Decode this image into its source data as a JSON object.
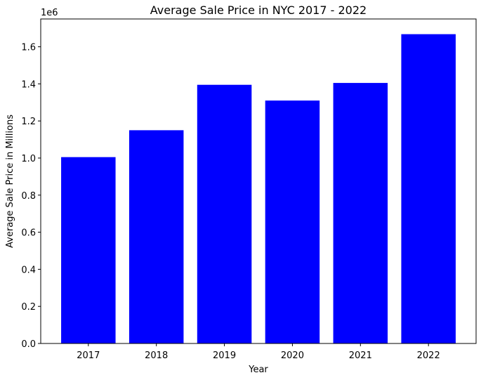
{
  "chart_data": {
    "type": "bar",
    "title": "Average Sale Price in NYC 2017 - 2022",
    "xlabel": "Year",
    "ylabel": "Average Sale Price in Millions",
    "y_offset_label": "1e6",
    "categories": [
      "2017",
      "2018",
      "2019",
      "2020",
      "2021",
      "2022"
    ],
    "values": [
      1005000,
      1150000,
      1395000,
      1310000,
      1405000,
      1668000
    ],
    "ylim": [
      0,
      1750000
    ],
    "yticks": [
      0,
      200000,
      400000,
      600000,
      800000,
      1000000,
      1200000,
      1400000,
      1600000
    ],
    "ytick_labels": [
      "0.0",
      "0.2",
      "0.4",
      "0.6",
      "0.8",
      "1.0",
      "1.2",
      "1.4",
      "1.6"
    ],
    "bar_color": "#0000ff",
    "grid": false
  }
}
